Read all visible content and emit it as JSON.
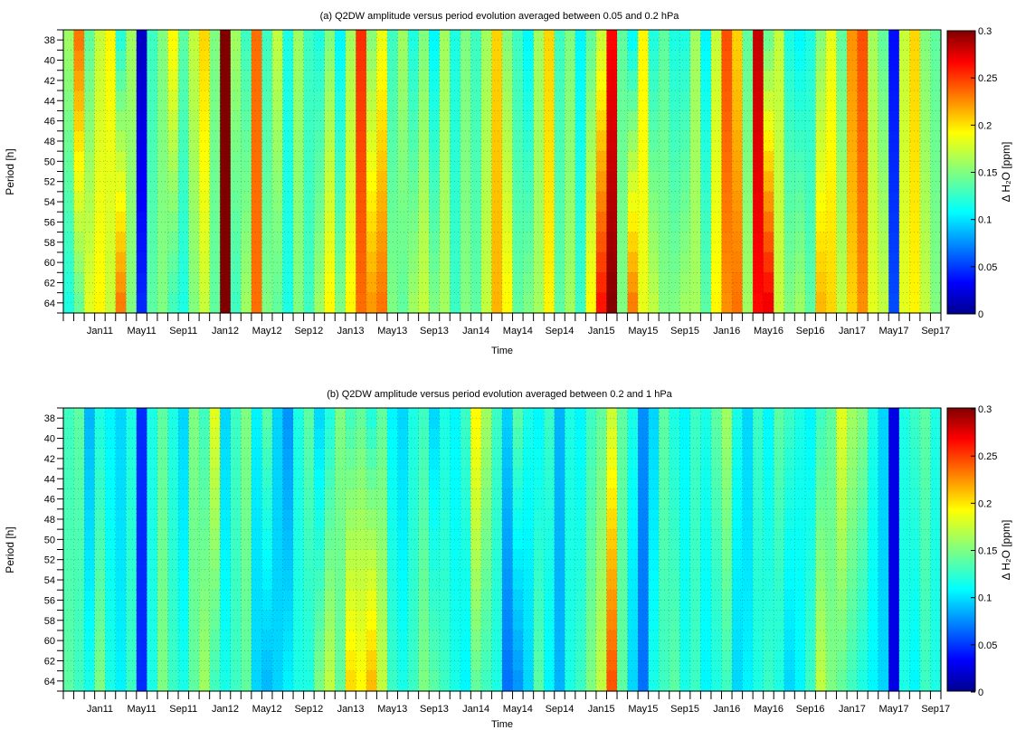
{
  "chart_data": [
    {
      "type": "heatmap",
      "title": "(a) Q2DW amplitude versus period evolution averaged between 0.05 and 0.2 hPa",
      "xlabel": "Time",
      "ylabel": "Period [h]",
      "colorbar_label": "Δ H₂O [ppm]",
      "colorbar_ticks": [
        "0",
        "0.05",
        "0.1",
        "0.15",
        "0.2",
        "0.25",
        "0.3"
      ],
      "clim": [
        0,
        0.3
      ],
      "colormap": "jet",
      "grid": true,
      "x_tick_labels": [
        "Jan11",
        "May11",
        "Sep11",
        "Jan12",
        "May12",
        "Sep12",
        "Jan13",
        "May13",
        "Sep13",
        "Jan14",
        "May14",
        "Sep14",
        "Jan15",
        "May15",
        "Sep15",
        "Jan16",
        "May16",
        "Sep16",
        "Jan17",
        "May17",
        "Sep17"
      ],
      "y_tick_labels": [
        "38",
        "40",
        "42",
        "44",
        "46",
        "48",
        "50",
        "52",
        "54",
        "56",
        "58",
        "60",
        "62",
        "64"
      ],
      "y_range": [
        37,
        65
      ],
      "columns": [
        "Oct10",
        "Nov10",
        "Dec10",
        "Jan11",
        "Feb11",
        "Mar11",
        "Apr11",
        "May11",
        "Jun11",
        "Jul11",
        "Aug11",
        "Sep11",
        "Oct11",
        "Nov11",
        "Dec11",
        "Jan12",
        "Feb12",
        "Mar12",
        "Apr12",
        "May12",
        "Jun12",
        "Jul12",
        "Aug12",
        "Sep12",
        "Oct12",
        "Nov12",
        "Dec12",
        "Jan13",
        "Feb13",
        "Mar13",
        "Apr13",
        "May13",
        "Jun13",
        "Jul13",
        "Aug13",
        "Sep13",
        "Oct13",
        "Nov13",
        "Dec13",
        "Jan14",
        "Feb14",
        "Mar14",
        "Apr14",
        "May14",
        "Jun14",
        "Jul14",
        "Aug14",
        "Sep14",
        "Oct14",
        "Nov14",
        "Dec14",
        "Jan15",
        "Feb15",
        "Mar15",
        "Apr15",
        "May15",
        "Jun15",
        "Jul15",
        "Aug15",
        "Sep15",
        "Oct15",
        "Nov15",
        "Dec15",
        "Jan16",
        "Feb16",
        "Mar16",
        "Apr16",
        "May16",
        "Jun16",
        "Jul16",
        "Aug16",
        "Sep16",
        "Oct16",
        "Nov16",
        "Dec16",
        "Jan17",
        "Feb17",
        "Mar17",
        "Apr17",
        "May17",
        "Jun17",
        "Jul17",
        "Aug17",
        "Sep17"
      ],
      "amplitude_top": [
        0.16,
        0.23,
        0.14,
        0.17,
        0.19,
        0.12,
        0.16,
        0.02,
        0.13,
        0.15,
        0.19,
        0.14,
        0.17,
        0.2,
        0.15,
        0.3,
        0.16,
        0.13,
        0.23,
        0.13,
        0.17,
        0.12,
        0.16,
        0.13,
        0.12,
        0.15,
        0.11,
        0.16,
        0.25,
        0.15,
        0.18,
        0.13,
        0.16,
        0.12,
        0.15,
        0.11,
        0.16,
        0.12,
        0.15,
        0.13,
        0.16,
        0.2,
        0.15,
        0.13,
        0.11,
        0.16,
        0.2,
        0.13,
        0.15,
        0.11,
        0.14,
        0.17,
        0.26,
        0.14,
        0.11,
        0.19,
        0.12,
        0.14,
        0.12,
        0.12,
        0.16,
        0.11,
        0.17,
        0.24,
        0.2,
        0.14,
        0.28,
        0.14,
        0.17,
        0.12,
        0.11,
        0.12,
        0.15,
        0.18,
        0.14,
        0.22,
        0.24,
        0.16,
        0.14,
        0.04,
        0.17,
        0.2,
        0.15,
        0.14
      ],
      "amplitude_bottom": [
        0.12,
        0.14,
        0.18,
        0.19,
        0.17,
        0.23,
        0.15,
        0.05,
        0.14,
        0.15,
        0.13,
        0.12,
        0.15,
        0.17,
        0.14,
        0.3,
        0.13,
        0.16,
        0.23,
        0.15,
        0.14,
        0.12,
        0.15,
        0.13,
        0.16,
        0.19,
        0.15,
        0.19,
        0.23,
        0.22,
        0.23,
        0.15,
        0.14,
        0.16,
        0.17,
        0.15,
        0.16,
        0.13,
        0.15,
        0.14,
        0.17,
        0.21,
        0.19,
        0.14,
        0.15,
        0.16,
        0.19,
        0.14,
        0.16,
        0.13,
        0.19,
        0.26,
        0.3,
        0.15,
        0.23,
        0.18,
        0.17,
        0.15,
        0.15,
        0.16,
        0.16,
        0.14,
        0.19,
        0.22,
        0.23,
        0.16,
        0.26,
        0.27,
        0.17,
        0.15,
        0.16,
        0.14,
        0.21,
        0.2,
        0.17,
        0.2,
        0.22,
        0.18,
        0.17,
        0.06,
        0.18,
        0.19,
        0.17,
        0.15
      ]
    },
    {
      "type": "heatmap",
      "title": "(b) Q2DW amplitude versus period evolution averaged between 0.2 and 1 hPa",
      "xlabel": "Time",
      "ylabel": "Period [h]",
      "colorbar_label": "Δ H₂O [ppm]",
      "colorbar_ticks": [
        "0",
        "0.05",
        "0.1",
        "0.15",
        "0.2",
        "0.25",
        "0.3"
      ],
      "clim": [
        0,
        0.3
      ],
      "colormap": "jet",
      "grid": true,
      "x_tick_labels": [
        "Jan11",
        "May11",
        "Sep11",
        "Jan12",
        "May12",
        "Sep12",
        "Jan13",
        "May13",
        "Sep13",
        "Jan14",
        "May14",
        "Sep14",
        "Jan15",
        "May15",
        "Sep15",
        "Jan16",
        "May16",
        "Sep16",
        "Jan17",
        "May17",
        "Sep17"
      ],
      "y_tick_labels": [
        "38",
        "40",
        "42",
        "44",
        "46",
        "48",
        "50",
        "52",
        "54",
        "56",
        "58",
        "60",
        "62",
        "64"
      ],
      "y_range": [
        37,
        65
      ],
      "columns": [
        "Oct10",
        "Nov10",
        "Dec10",
        "Jan11",
        "Feb11",
        "Mar11",
        "Apr11",
        "May11",
        "Jun11",
        "Jul11",
        "Aug11",
        "Sep11",
        "Oct11",
        "Nov11",
        "Dec11",
        "Jan12",
        "Feb12",
        "Mar12",
        "Apr12",
        "May12",
        "Jun12",
        "Jul12",
        "Aug12",
        "Sep12",
        "Oct12",
        "Nov12",
        "Dec12",
        "Jan13",
        "Feb13",
        "Mar13",
        "Apr13",
        "May13",
        "Jun13",
        "Jul13",
        "Aug13",
        "Sep13",
        "Oct13",
        "Nov13",
        "Dec13",
        "Jan14",
        "Feb14",
        "Mar14",
        "Apr14",
        "May14",
        "Jun14",
        "Jul14",
        "Aug14",
        "Sep14",
        "Oct14",
        "Nov14",
        "Dec14",
        "Jan15",
        "Feb15",
        "Mar15",
        "Apr15",
        "May15",
        "Jun15",
        "Jul15",
        "Aug15",
        "Sep15",
        "Oct15",
        "Nov15",
        "Dec15",
        "Jan16",
        "Feb16",
        "Mar16",
        "Apr16",
        "May16",
        "Jun16",
        "Jul16",
        "Aug16",
        "Sep16",
        "Oct16",
        "Nov16",
        "Dec16",
        "Jan17",
        "Feb17",
        "Mar17",
        "Apr17",
        "May17",
        "Jun17",
        "Jul17",
        "Aug17",
        "Sep17"
      ],
      "amplitude_top": [
        0.13,
        0.14,
        0.09,
        0.12,
        0.11,
        0.1,
        0.12,
        0.05,
        0.12,
        0.14,
        0.12,
        0.1,
        0.15,
        0.13,
        0.18,
        0.1,
        0.13,
        0.15,
        0.11,
        0.14,
        0.1,
        0.08,
        0.12,
        0.14,
        0.1,
        0.12,
        0.15,
        0.13,
        0.14,
        0.12,
        0.14,
        0.11,
        0.1,
        0.12,
        0.13,
        0.1,
        0.12,
        0.11,
        0.13,
        0.19,
        0.16,
        0.13,
        0.1,
        0.14,
        0.12,
        0.11,
        0.13,
        0.09,
        0.12,
        0.11,
        0.13,
        0.14,
        0.17,
        0.14,
        0.12,
        0.08,
        0.1,
        0.14,
        0.12,
        0.11,
        0.13,
        0.12,
        0.14,
        0.16,
        0.12,
        0.1,
        0.13,
        0.11,
        0.14,
        0.13,
        0.12,
        0.11,
        0.13,
        0.14,
        0.18,
        0.16,
        0.15,
        0.12,
        0.1,
        0.03,
        0.12,
        0.13,
        0.14,
        0.12
      ],
      "amplitude_bottom": [
        0.14,
        0.13,
        0.12,
        0.15,
        0.12,
        0.11,
        0.13,
        0.05,
        0.12,
        0.15,
        0.13,
        0.12,
        0.14,
        0.16,
        0.13,
        0.12,
        0.13,
        0.14,
        0.1,
        0.09,
        0.1,
        0.11,
        0.12,
        0.12,
        0.15,
        0.17,
        0.14,
        0.2,
        0.19,
        0.21,
        0.17,
        0.13,
        0.12,
        0.13,
        0.15,
        0.14,
        0.13,
        0.12,
        0.11,
        0.14,
        0.13,
        0.12,
        0.07,
        0.08,
        0.1,
        0.14,
        0.11,
        0.09,
        0.12,
        0.13,
        0.15,
        0.17,
        0.24,
        0.14,
        0.1,
        0.07,
        0.12,
        0.13,
        0.14,
        0.12,
        0.13,
        0.11,
        0.12,
        0.13,
        0.1,
        0.11,
        0.12,
        0.13,
        0.12,
        0.1,
        0.11,
        0.13,
        0.17,
        0.15,
        0.14,
        0.13,
        0.12,
        0.11,
        0.1,
        0.03,
        0.12,
        0.11,
        0.13,
        0.12
      ]
    }
  ]
}
